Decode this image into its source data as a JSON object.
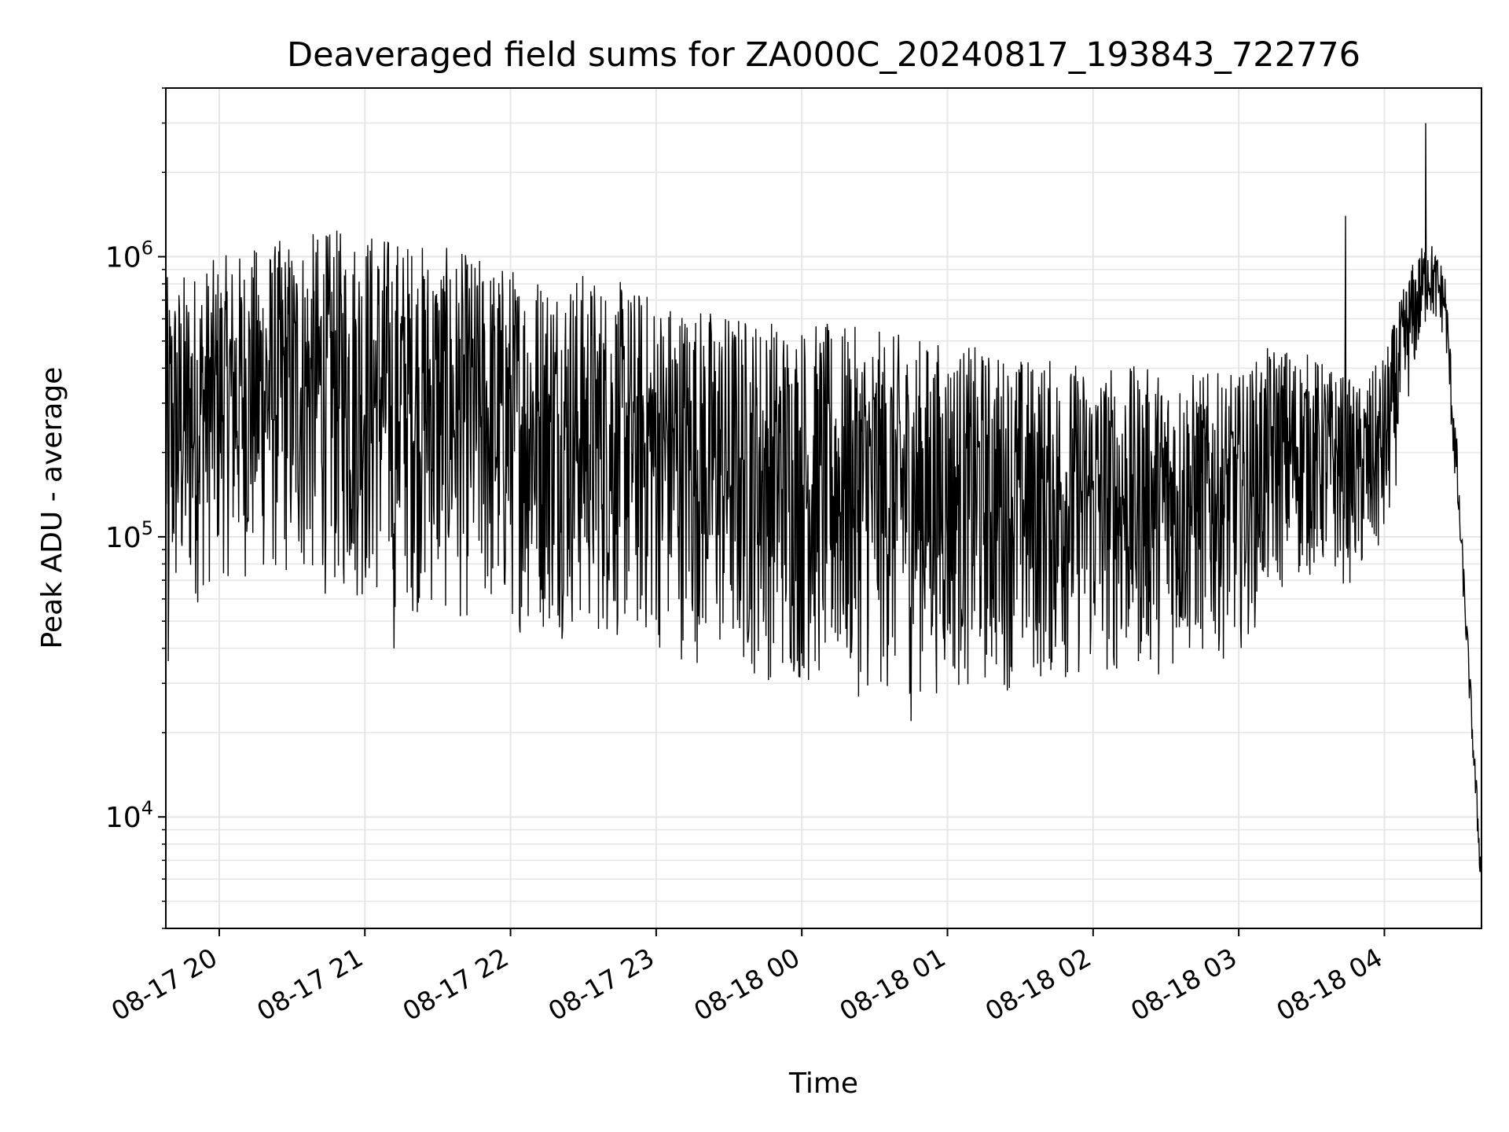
{
  "chart_data": {
    "type": "line",
    "title": "Deaveraged field sums for ZA000C_20240817_193843_722776",
    "xlabel": "Time",
    "ylabel": "Peak ADU - average",
    "yscale": "log",
    "ylim": [
      4000,
      4000000
    ],
    "xlim": [
      "2024-08-17 19:38",
      "2024-08-18 04:40"
    ],
    "grid": true,
    "line_color": "#000000",
    "grid_color": "#e6e6e6",
    "x_ticks": [
      {
        "value": "2024-08-17 20:00",
        "label": "08-17 20"
      },
      {
        "value": "2024-08-17 21:00",
        "label": "08-17 21"
      },
      {
        "value": "2024-08-17 22:00",
        "label": "08-17 22"
      },
      {
        "value": "2024-08-17 23:00",
        "label": "08-17 23"
      },
      {
        "value": "2024-08-18 00:00",
        "label": "08-18 00"
      },
      {
        "value": "2024-08-18 01:00",
        "label": "08-18 01"
      },
      {
        "value": "2024-08-18 02:00",
        "label": "08-18 02"
      },
      {
        "value": "2024-08-18 03:00",
        "label": "08-18 03"
      },
      {
        "value": "2024-08-18 04:00",
        "label": "08-18 04"
      }
    ],
    "y_ticks": [
      {
        "value": 10000,
        "base": "10",
        "exp": "4"
      },
      {
        "value": 100000,
        "base": "10",
        "exp": "5"
      },
      {
        "value": 1000000,
        "base": "10",
        "exp": "6"
      }
    ],
    "envelope": [
      {
        "x": "2024-08-17 19:38",
        "high": 850000,
        "low": 40000
      },
      {
        "x": "2024-08-17 20:00",
        "high": 1000000,
        "low": 70000
      },
      {
        "x": "2024-08-17 20:30",
        "high": 1200000,
        "low": 65000
      },
      {
        "x": "2024-08-17 21:00",
        "high": 1300000,
        "low": 55000
      },
      {
        "x": "2024-08-17 21:30",
        "high": 1100000,
        "low": 50000
      },
      {
        "x": "2024-08-17 22:00",
        "high": 950000,
        "low": 45000
      },
      {
        "x": "2024-08-17 22:30",
        "high": 900000,
        "low": 42000
      },
      {
        "x": "2024-08-17 23:00",
        "high": 750000,
        "low": 38000
      },
      {
        "x": "2024-08-17 23:30",
        "high": 650000,
        "low": 32000
      },
      {
        "x": "2024-08-18 00:00",
        "high": 600000,
        "low": 28000
      },
      {
        "x": "2024-08-18 00:30",
        "high": 550000,
        "low": 26000
      },
      {
        "x": "2024-08-18 01:00",
        "high": 500000,
        "low": 27000
      },
      {
        "x": "2024-08-18 01:30",
        "high": 450000,
        "low": 28000
      },
      {
        "x": "2024-08-18 02:00",
        "high": 420000,
        "low": 30000
      },
      {
        "x": "2024-08-18 02:30",
        "high": 400000,
        "low": 32000
      },
      {
        "x": "2024-08-18 03:00",
        "high": 380000,
        "low": 38000
      },
      {
        "x": "2024-08-18 03:15",
        "high": 500000,
        "low": 60000
      },
      {
        "x": "2024-08-18 03:30",
        "high": 450000,
        "low": 70000
      },
      {
        "x": "2024-08-18 03:50",
        "high": 350000,
        "low": 65000
      },
      {
        "x": "2024-08-18 04:00",
        "high": 450000,
        "low": 80000
      },
      {
        "x": "2024-08-18 04:10",
        "high": 900000,
        "low": 300000
      },
      {
        "x": "2024-08-18 04:18",
        "high": 1200000,
        "low": 600000
      },
      {
        "x": "2024-08-18 04:25",
        "high": 900000,
        "low": 500000
      },
      {
        "x": "2024-08-18 04:32",
        "high": 120000,
        "low": 60000
      },
      {
        "x": "2024-08-18 04:37",
        "high": 20000,
        "low": 12000
      },
      {
        "x": "2024-08-18 04:40",
        "high": 7000,
        "low": 5000
      }
    ],
    "spikes": [
      {
        "x": "2024-08-17 19:39",
        "y": 36000
      },
      {
        "x": "2024-08-17 21:12",
        "y": 40000
      },
      {
        "x": "2024-08-18 00:45",
        "y": 22000
      },
      {
        "x": "2024-08-18 03:44",
        "y": 1400000
      },
      {
        "x": "2024-08-18 04:17",
        "y": 3000000
      }
    ]
  }
}
